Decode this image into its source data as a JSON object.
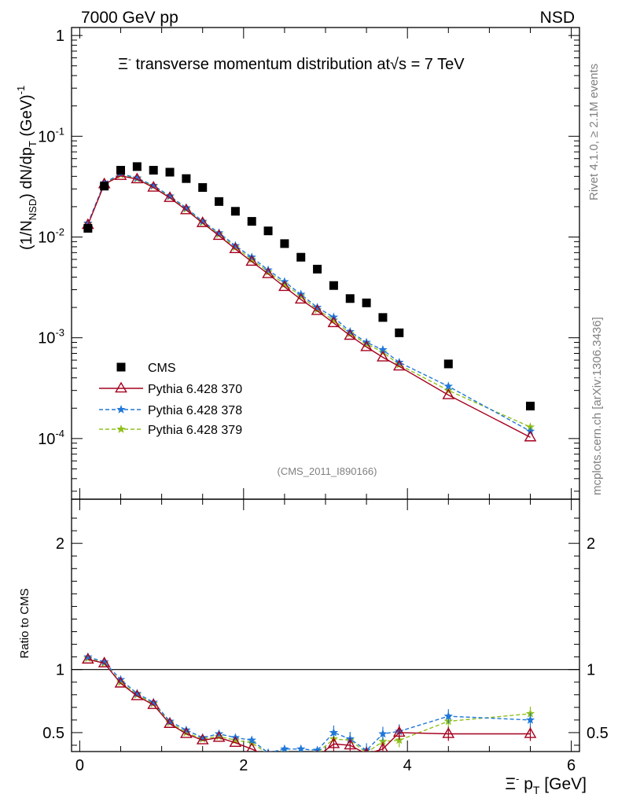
{
  "header": {
    "left": "7000 GeV pp",
    "right": "NSD",
    "title_prefix": "Ξ",
    "title_sup": "-",
    "title_main": " transverse momentum distribution at",
    "title_sqrt": "√",
    "title_energy": "s = 7 TeV",
    "side_rivet": "Rivet 4.1.0, ≥ 2.1M events",
    "side_mcplots": "mcplots.cern.ch [arXiv:1306.3436]",
    "analysis_ref": "(CMS_2011_I890166)"
  },
  "colors": {
    "cms": "#000000",
    "p370": "#a4001e",
    "p378": "#1f77d8",
    "p379": "#8fbf1a",
    "axis": "#000000",
    "side_text": "#808080"
  },
  "chart_data": [
    {
      "type": "scatter",
      "panel": "main",
      "title": "Ξ- transverse momentum distribution at √s = 7 TeV",
      "ylabel": "(1/N_NSD) dN/dp_T (GeV)^-1",
      "yscale": "log",
      "ylim": [
        2.5e-05,
        1.2
      ],
      "xlim": [
        -0.1,
        6.1
      ],
      "y_ticks": [
        {
          "value": 0.0001,
          "base": "10",
          "exp": "-4"
        },
        {
          "value": 0.001,
          "base": "10",
          "exp": "-3"
        },
        {
          "value": 0.01,
          "base": "10",
          "exp": "-2"
        },
        {
          "value": 0.1,
          "base": "10",
          "exp": "-1"
        },
        {
          "value": 1,
          "base": "1",
          "exp": ""
        }
      ],
      "legend_position": "lower-left",
      "series": [
        {
          "key": "cms",
          "name": "CMS",
          "marker": "square",
          "x": [
            0.1,
            0.3,
            0.5,
            0.7,
            0.9,
            1.1,
            1.3,
            1.5,
            1.7,
            1.9,
            2.1,
            2.3,
            2.5,
            2.7,
            2.9,
            3.1,
            3.3,
            3.5,
            3.7,
            3.9,
            4.5,
            5.5
          ],
          "y": [
            0.0122,
            0.032,
            0.046,
            0.05,
            0.046,
            0.044,
            0.038,
            0.031,
            0.0225,
            0.018,
            0.0143,
            0.0115,
            0.0086,
            0.0063,
            0.0048,
            0.0033,
            0.00245,
            0.00222,
            0.00159,
            0.00112,
            0.00055,
            0.00021
          ]
        },
        {
          "key": "p370",
          "name": "Pythia 6.428 370",
          "marker": "triangle",
          "line": "solid",
          "x": [
            0.1,
            0.3,
            0.5,
            0.7,
            0.9,
            1.1,
            1.3,
            1.5,
            1.7,
            1.9,
            2.1,
            2.3,
            2.5,
            2.7,
            2.9,
            3.1,
            3.3,
            3.5,
            3.7,
            3.9,
            4.5,
            5.5
          ],
          "y": [
            0.0132,
            0.0335,
            0.0405,
            0.0375,
            0.031,
            0.0245,
            0.0185,
            0.0138,
            0.0103,
            0.0076,
            0.0057,
            0.0043,
            0.0032,
            0.0024,
            0.00185,
            0.0014,
            0.00105,
            0.00081,
            0.00064,
            0.00052,
            0.00027,
            0.000103
          ]
        },
        {
          "key": "p378",
          "name": "Pythia 6.428 378",
          "marker": "star",
          "line": "dashed",
          "x": [
            0.1,
            0.3,
            0.5,
            0.7,
            0.9,
            1.1,
            1.3,
            1.5,
            1.7,
            1.9,
            2.1,
            2.3,
            2.5,
            2.7,
            2.9,
            3.1,
            3.3,
            3.5,
            3.7,
            3.9,
            4.5,
            5.5
          ],
          "y": [
            0.0137,
            0.0345,
            0.0425,
            0.0385,
            0.0325,
            0.0255,
            0.0195,
            0.0143,
            0.011,
            0.0082,
            0.0063,
            0.0047,
            0.0036,
            0.0027,
            0.002,
            0.0016,
            0.00115,
            0.0009,
            0.00076,
            0.00057,
            0.00033,
            0.000118
          ]
        },
        {
          "key": "p379",
          "name": "Pythia 6.428 379",
          "marker": "star",
          "line": "dashed",
          "x": [
            0.1,
            0.3,
            0.5,
            0.7,
            0.9,
            1.1,
            1.3,
            1.5,
            1.7,
            1.9,
            2.1,
            2.3,
            2.5,
            2.7,
            2.9,
            3.1,
            3.3,
            3.5,
            3.7,
            3.9,
            4.5,
            5.5
          ],
          "y": [
            0.0135,
            0.034,
            0.0415,
            0.038,
            0.032,
            0.0252,
            0.019,
            0.014,
            0.0106,
            0.0079,
            0.006,
            0.0045,
            0.0034,
            0.0026,
            0.0019,
            0.0015,
            0.0011,
            0.00087,
            0.00072,
            0.00054,
            0.0003,
            0.00013
          ]
        }
      ]
    },
    {
      "type": "line",
      "panel": "ratio",
      "ylabel": "Ratio to CMS",
      "xlabel_prefix": "Ξ",
      "xlabel_sup": "-",
      "xlabel_main": " p",
      "xlabel_sub": "T",
      "xlabel_unit": " [GeV]",
      "xlim": [
        -0.1,
        6.1
      ],
      "ylim": [
        0.35,
        2.35
      ],
      "x_ticks": [
        {
          "value": 0,
          "label": "0"
        },
        {
          "value": 2,
          "label": "2"
        },
        {
          "value": 4,
          "label": "4"
        },
        {
          "value": 6,
          "label": "6"
        }
      ],
      "y_ticks": [
        {
          "value": 0.5,
          "label": "0.5"
        },
        {
          "value": 1,
          "label": "1"
        },
        {
          "value": 2,
          "label": "2"
        }
      ],
      "reference_line": 1,
      "series": [
        {
          "key": "p370",
          "name": "Pythia 6.428 370",
          "x": [
            0.1,
            0.3,
            0.5,
            0.7,
            0.9,
            1.1,
            1.3,
            1.5,
            1.7,
            1.9,
            2.1,
            2.3,
            2.5,
            2.7,
            2.9,
            3.1,
            3.3,
            3.5,
            3.7,
            3.9,
            4.5,
            5.5
          ],
          "y": [
            1.08,
            1.05,
            0.89,
            0.79,
            0.72,
            0.57,
            0.49,
            0.44,
            0.46,
            0.42,
            0.37,
            0.31,
            0.3,
            0.29,
            0.31,
            0.41,
            0.4,
            0.33,
            0.37,
            0.5,
            0.49,
            0.49
          ]
        },
        {
          "key": "p378",
          "name": "Pythia 6.428 378",
          "x": [
            0.1,
            0.3,
            0.5,
            0.7,
            0.9,
            1.1,
            1.3,
            1.5,
            1.7,
            1.9,
            2.1,
            2.3,
            2.5,
            2.7,
            2.9,
            3.1,
            3.3,
            3.5,
            3.7,
            3.9,
            4.5,
            5.5
          ],
          "y": [
            1.1,
            1.06,
            0.92,
            0.81,
            0.74,
            0.59,
            0.52,
            0.46,
            0.49,
            0.46,
            0.44,
            0.34,
            0.37,
            0.37,
            0.36,
            0.5,
            0.45,
            0.36,
            0.49,
            0.51,
            0.63,
            0.6
          ]
        },
        {
          "key": "p379",
          "name": "Pythia 6.428 379",
          "x": [
            0.1,
            0.3,
            0.5,
            0.7,
            0.9,
            1.1,
            1.3,
            1.5,
            1.7,
            1.9,
            2.1,
            2.3,
            2.5,
            2.7,
            2.9,
            3.1,
            3.3,
            3.5,
            3.7,
            3.9,
            4.5,
            5.5
          ],
          "y": [
            1.09,
            1.05,
            0.9,
            0.8,
            0.73,
            0.58,
            0.5,
            0.45,
            0.47,
            0.44,
            0.42,
            0.33,
            0.34,
            0.33,
            0.34,
            0.45,
            0.44,
            0.34,
            0.43,
            0.44,
            0.59,
            0.65
          ]
        }
      ]
    }
  ]
}
